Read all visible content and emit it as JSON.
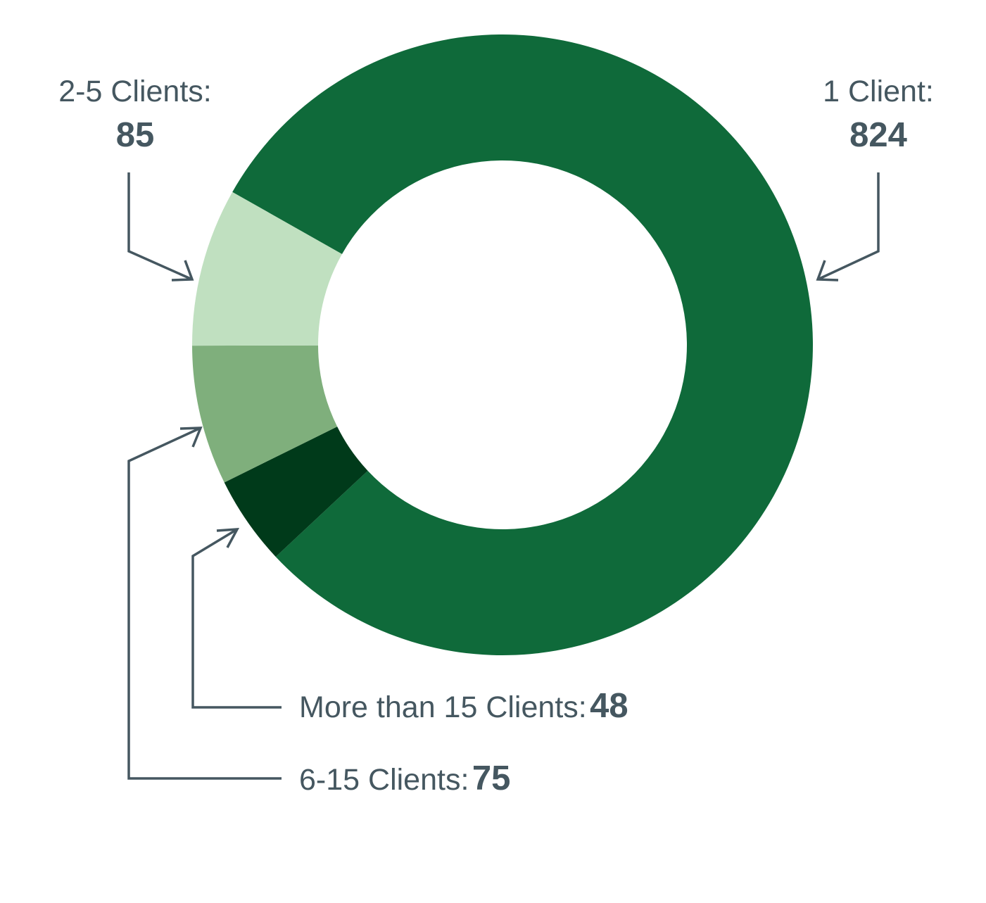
{
  "chart_data": {
    "type": "pie",
    "variant": "donut",
    "categories": [
      "1 Client",
      "More than 15 Clients",
      "6-15 Clients",
      "2-5 Clients"
    ],
    "values": [
      824,
      48,
      75,
      85
    ],
    "colors": [
      "#0f6a3a",
      "#003a1a",
      "#7faf7c",
      "#c0e0c0"
    ],
    "labels": [
      {
        "name": "1 Client:",
        "value": "824"
      },
      {
        "name": "More than 15 Clients:",
        "value": "48"
      },
      {
        "name": "6-15 Clients:",
        "value": "75"
      },
      {
        "name": "2-5 Clients:",
        "value": "85"
      }
    ],
    "label_color": "#455760",
    "legend": "none"
  }
}
